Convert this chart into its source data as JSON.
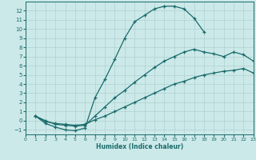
{
  "xlabel": "Humidex (Indice chaleur)",
  "bg_color": "#cce9e9",
  "line_color": "#1a6b6b",
  "grid_color": "#b0d0d0",
  "xlim": [
    0,
    23
  ],
  "ylim": [
    -1.5,
    13.0
  ],
  "xticks": [
    0,
    1,
    2,
    3,
    4,
    5,
    6,
    7,
    8,
    9,
    10,
    11,
    12,
    13,
    14,
    15,
    16,
    17,
    18,
    19,
    20,
    21,
    22,
    23
  ],
  "yticks": [
    -1,
    0,
    1,
    2,
    3,
    4,
    5,
    6,
    7,
    8,
    9,
    10,
    11,
    12
  ],
  "curve1_x": [
    1,
    2,
    3,
    4,
    5,
    6,
    7,
    8,
    9,
    10,
    11,
    12,
    13,
    14,
    15,
    16,
    17,
    18
  ],
  "curve1_y": [
    0.5,
    -0.3,
    -0.7,
    -1.0,
    -1.1,
    -0.8,
    2.5,
    4.5,
    6.7,
    9.0,
    10.8,
    11.5,
    12.2,
    12.5,
    12.5,
    12.2,
    11.2,
    9.7
  ],
  "curve2_x": [
    1,
    2,
    3,
    4,
    5,
    6,
    7,
    8,
    9,
    10,
    11,
    12,
    13,
    14,
    15,
    16,
    17,
    18,
    19,
    20,
    21,
    22,
    23
  ],
  "curve2_y": [
    0.5,
    0.0,
    -0.4,
    -0.5,
    -0.6,
    -0.5,
    0.5,
    1.5,
    2.5,
    3.3,
    4.2,
    5.0,
    5.8,
    6.5,
    7.0,
    7.5,
    7.8,
    7.5,
    7.3,
    7.0,
    7.5,
    7.2,
    6.5
  ],
  "curve3_x": [
    1,
    2,
    3,
    4,
    5,
    6,
    7,
    8,
    9,
    10,
    11,
    12,
    13,
    14,
    15,
    16,
    17,
    18,
    19,
    20,
    21,
    22,
    23
  ],
  "curve3_y": [
    0.5,
    -0.1,
    -0.3,
    -0.4,
    -0.5,
    -0.4,
    0.1,
    0.5,
    1.0,
    1.5,
    2.0,
    2.5,
    3.0,
    3.5,
    4.0,
    4.3,
    4.7,
    5.0,
    5.2,
    5.4,
    5.5,
    5.7,
    5.2
  ]
}
